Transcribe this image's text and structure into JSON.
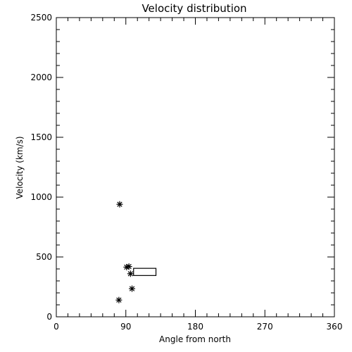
{
  "chart_data": {
    "type": "scatter",
    "title": "Velocity distribution",
    "xlabel": "Angle from north",
    "ylabel": "Velocity (km/s)",
    "xlim": [
      0,
      360
    ],
    "ylim": [
      0,
      2500
    ],
    "xticks": [
      0,
      90,
      180,
      270,
      360
    ],
    "yticks": [
      0,
      500,
      1000,
      1500,
      2000,
      2500
    ],
    "grid": false,
    "legend": "none",
    "series": [
      {
        "marker": "asterisk",
        "points": [
          {
            "x": 82,
            "y": 940
          },
          {
            "x": 91,
            "y": 415
          },
          {
            "x": 94,
            "y": 420
          },
          {
            "x": 96,
            "y": 360
          },
          {
            "x": 98,
            "y": 235
          },
          {
            "x": 81,
            "y": 140
          }
        ]
      }
    ],
    "annotations": [
      {
        "shape": "rectangle",
        "x0": 100,
        "x1": 129,
        "y0": 345,
        "y1": 405
      }
    ]
  }
}
